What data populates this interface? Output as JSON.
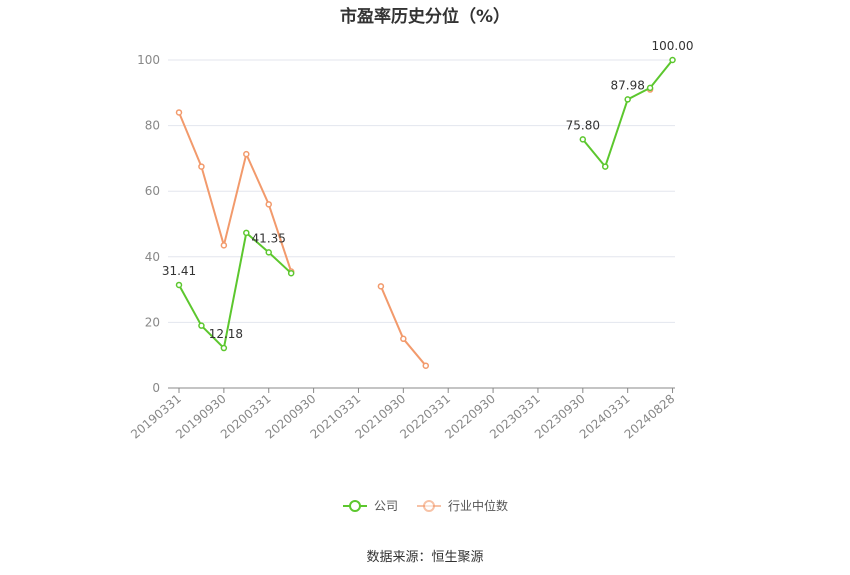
{
  "chart_data": {
    "type": "line",
    "title": "市盈率历史分位（%）",
    "categories": [
      "20190331",
      "20190630",
      "20190930",
      "20191231",
      "20200331",
      "20200630",
      "20200930",
      "20201231",
      "20210331",
      "20210630",
      "20210930",
      "20211231",
      "20220331",
      "20220630",
      "20220930",
      "20221231",
      "20230331",
      "20230630",
      "20230930",
      "20231231",
      "20240331",
      "20240630",
      "20240828"
    ],
    "tick_labels": [
      "20190331",
      "20190930",
      "20200331",
      "20200930",
      "20210331",
      "20210930",
      "20220331",
      "20220930",
      "20230331",
      "20230930",
      "20240331",
      "20240828"
    ],
    "ylim": [
      0,
      100
    ],
    "yticks": [
      0,
      20,
      40,
      60,
      80,
      100
    ],
    "grid": true,
    "legend_position": "bottom",
    "series": [
      {
        "name": "公司",
        "color": "#5cc72e",
        "values": [
          31.41,
          19,
          12.18,
          47.3,
          41.35,
          35,
          null,
          null,
          null,
          null,
          null,
          null,
          null,
          null,
          null,
          null,
          null,
          null,
          75.8,
          67.5,
          87.98,
          91.5,
          100.0
        ],
        "labels": [
          {
            "index": 0,
            "text": "31.41"
          },
          {
            "index": 2,
            "text": "12.18"
          },
          {
            "index": 4,
            "text": "41.35"
          },
          {
            "index": 18,
            "text": "75.80"
          },
          {
            "index": 20,
            "text": "87.98"
          },
          {
            "index": 22,
            "text": "100.00"
          }
        ]
      },
      {
        "name": "行业中位数",
        "color": "#f29a6c",
        "values": [
          84,
          67.5,
          43.5,
          71.3,
          56,
          35.5,
          null,
          null,
          null,
          31,
          15,
          6.8,
          null,
          null,
          null,
          null,
          null,
          null,
          null,
          null,
          null,
          91,
          null
        ]
      }
    ]
  },
  "source": "数据来源：恒生聚源"
}
